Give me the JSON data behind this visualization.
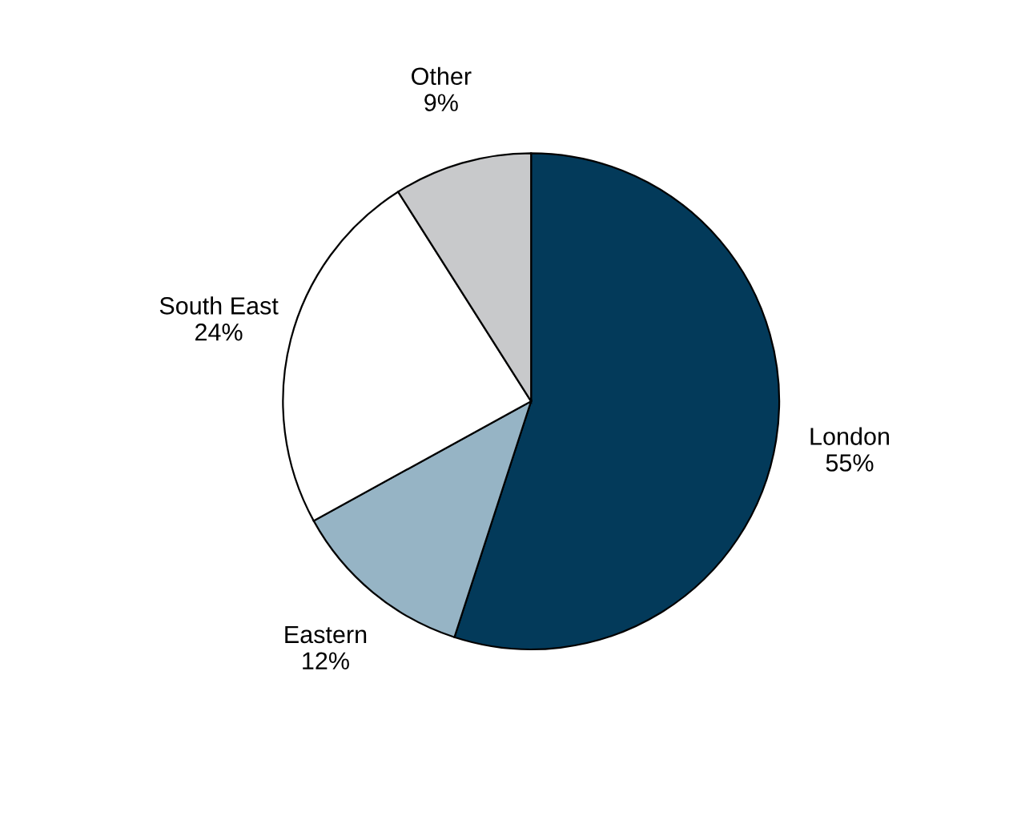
{
  "chart_data": {
    "type": "pie",
    "categories": [
      "London",
      "Eastern",
      "South East",
      "Other"
    ],
    "values": [
      55,
      12,
      24,
      9
    ],
    "colors": [
      "#033a5a",
      "#96b4c5",
      "#ffffff",
      "#c8c9cb"
    ],
    "value_labels": [
      "55%",
      "12%",
      "24%",
      "9%"
    ],
    "legend": false
  }
}
